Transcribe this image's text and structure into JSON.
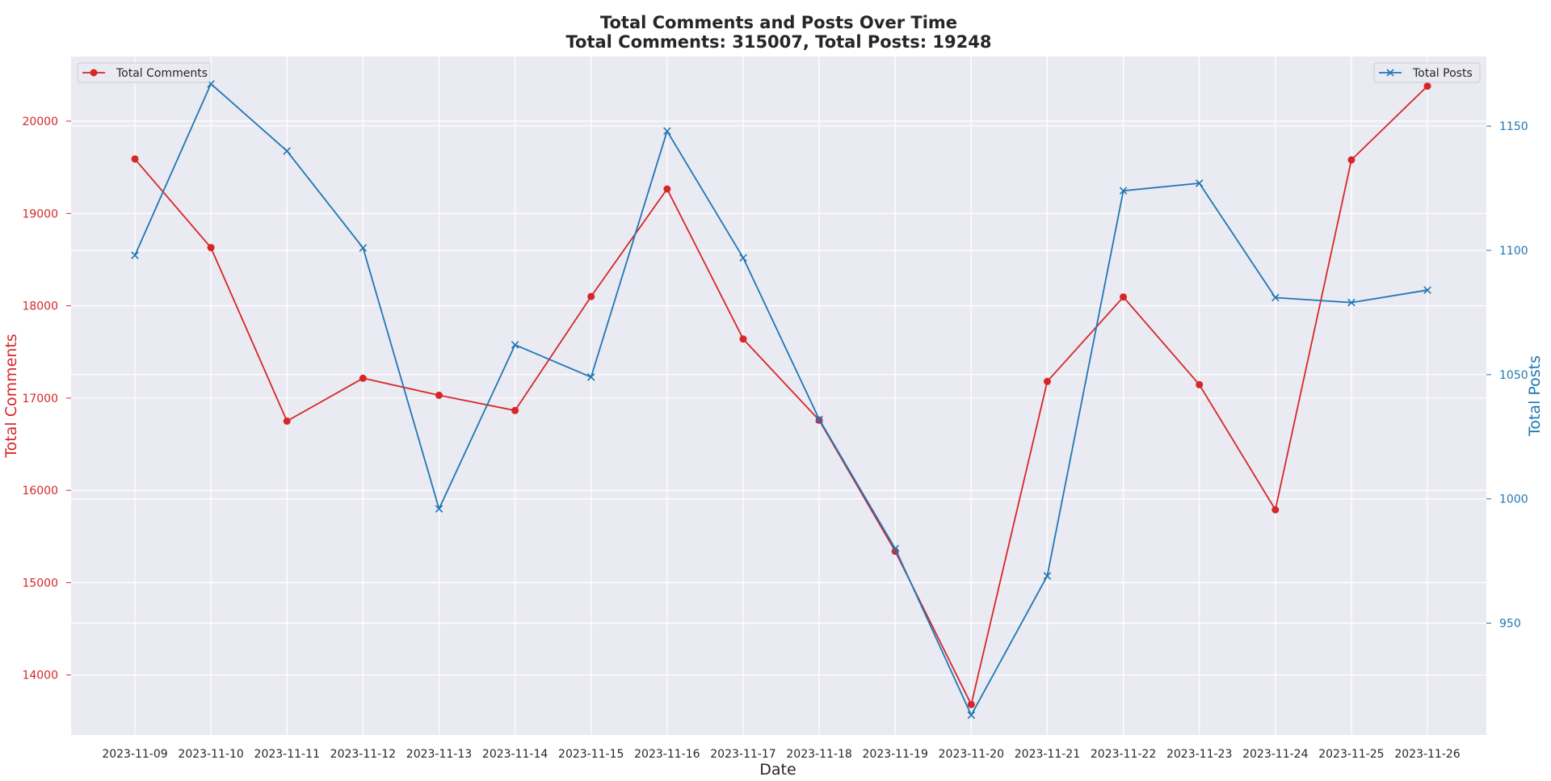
{
  "chart_data": {
    "type": "line",
    "title": "Total Comments and Posts Over Time",
    "subtitle": "Total Comments: 315007, Total Posts: 19248",
    "xlabel": "Date",
    "ylabel_left": "Total Comments",
    "ylabel_right": "Total Posts",
    "x": [
      "2023-11-09",
      "2023-11-10",
      "2023-11-11",
      "2023-11-12",
      "2023-11-13",
      "2023-11-14",
      "2023-11-15",
      "2023-11-16",
      "2023-11-17",
      "2023-11-18",
      "2023-11-19",
      "2023-11-20",
      "2023-11-21",
      "2023-11-22",
      "2023-11-23",
      "2023-11-24",
      "2023-11-25",
      "2023-11-26"
    ],
    "ylim_left": [
      13350,
      20700
    ],
    "ylim_right": [
      905,
      1178
    ],
    "yticks_left": [
      14000,
      15000,
      16000,
      17000,
      18000,
      19000,
      20000
    ],
    "yticks_right": [
      950,
      1000,
      1050,
      1100,
      1150
    ],
    "grid": true,
    "series": [
      {
        "name": "Total Comments",
        "axis": "left",
        "color": "#d62728",
        "marker": "circle",
        "legend_position": "top-left",
        "values": [
          19590,
          18630,
          16750,
          17215,
          17030,
          16865,
          18100,
          19265,
          17640,
          16760,
          15340,
          13680,
          17180,
          18095,
          17145,
          15790,
          19580,
          20380
        ]
      },
      {
        "name": "Total Posts",
        "axis": "right",
        "color": "#1f77b4",
        "marker": "x",
        "legend_position": "top-right",
        "values": [
          1098,
          1167,
          1140,
          1101,
          996,
          1062,
          1049,
          1148,
          1097,
          1032,
          980,
          913,
          969,
          1124,
          1127,
          1081,
          1079,
          1084
        ]
      }
    ]
  }
}
